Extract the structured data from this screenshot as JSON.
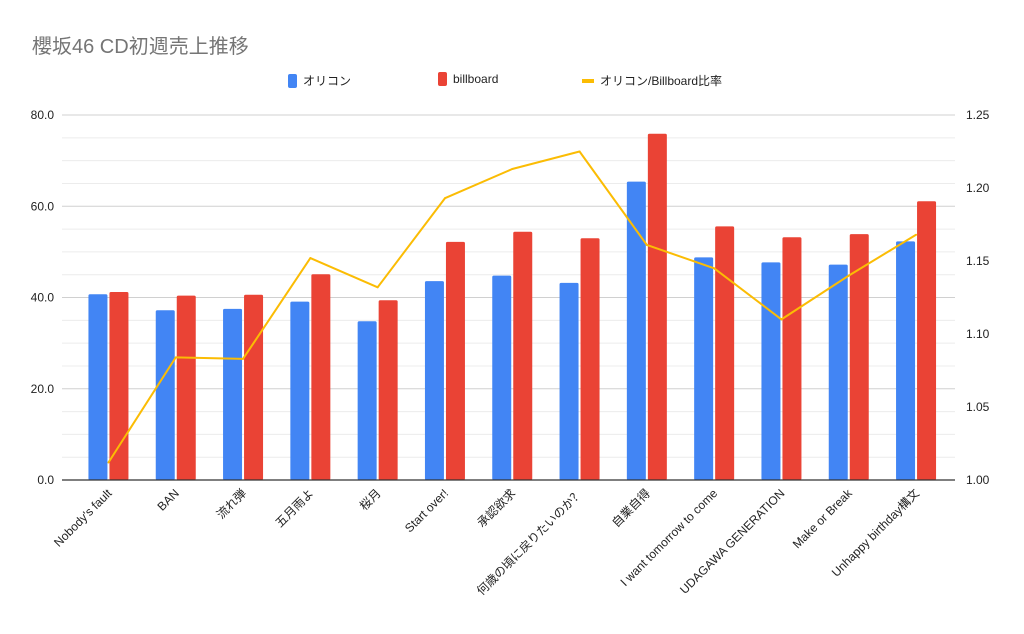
{
  "chart_data": {
    "type": "bar+line",
    "title": "櫻坂46 CD初週売上推移",
    "categories": [
      "Nobody's fault",
      "BAN",
      "流れ弾",
      "五月雨よ",
      "桜月",
      "Start over!",
      "承認欲求",
      "何歳の頃に戻りたいのか？",
      "自業自得",
      "I want tomorrow to come",
      "UDAGAWA GENERATION",
      "Make or Break",
      "Unhappy birthday構文"
    ],
    "series": [
      {
        "name": "オリコン",
        "type": "bar",
        "axis": "left",
        "color": "#4285f4",
        "values": [
          40.7,
          37.2,
          37.5,
          39.1,
          34.8,
          43.6,
          44.8,
          43.2,
          65.4,
          48.8,
          47.7,
          47.2,
          52.3
        ]
      },
      {
        "name": "billboard",
        "type": "bar",
        "axis": "left",
        "color": "#ea4335",
        "values": [
          41.2,
          40.4,
          40.6,
          45.1,
          39.4,
          52.2,
          54.4,
          53.0,
          75.9,
          55.6,
          53.2,
          53.9,
          61.1
        ]
      },
      {
        "name": "オリコン/Billboard比率",
        "type": "line",
        "axis": "right",
        "color": "#fbbc04",
        "values": [
          1.012,
          1.084,
          1.083,
          1.152,
          1.132,
          1.193,
          1.213,
          1.225,
          1.161,
          1.145,
          1.11,
          1.14,
          1.168
        ]
      }
    ],
    "left_axis": {
      "range": [
        0,
        80
      ],
      "ticks": [
        "0.0",
        "20.0",
        "40.0",
        "60.0",
        "80.0"
      ]
    },
    "right_axis": {
      "range": [
        1.0,
        1.25
      ],
      "ticks": [
        "1.00",
        "1.05",
        "1.10",
        "1.15",
        "1.20",
        "1.25"
      ]
    },
    "grid": true,
    "legend_position": "top"
  }
}
